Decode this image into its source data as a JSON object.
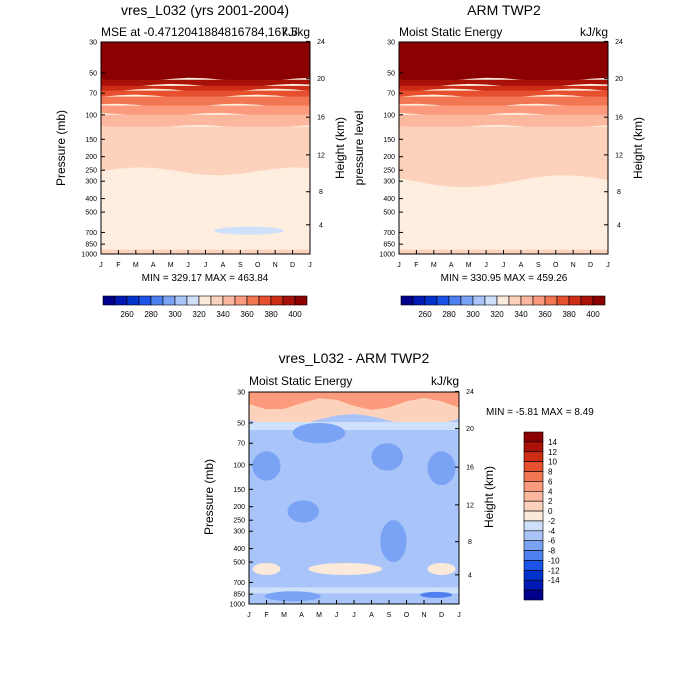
{
  "panels": [
    {
      "title": "vres_L032 (yrs 2001-2004)",
      "left_label": "MSE at -0.4712041884816784,167.5",
      "right_label": "kJ/kg",
      "ylabel_left": "Pressure (mb)",
      "ylabel_right": "Height (km)",
      "stats": "MIN = 329.17 MAX = 463.84"
    },
    {
      "title": "ARM TWP2",
      "left_label": "Moist Static Energy",
      "right_label": "kJ/kg",
      "ylabel_left": "pressure level",
      "ylabel_right": "Height (km)",
      "stats": "MIN = 330.95 MAX = 459.26"
    },
    {
      "title": "vres_L032 - ARM TWP2",
      "left_label": "Moist Static Energy",
      "right_label": "kJ/kg",
      "ylabel_left": "Pressure (mb)",
      "ylabel_right": "Height (km)",
      "stats": "MIN =  -5.81 MAX =   8.49"
    }
  ],
  "colorbar_abs": {
    "colors": [
      "#00008b",
      "#0019b3",
      "#0033cc",
      "#1a53e6",
      "#4d7ff0",
      "#7aa3f5",
      "#a8c4f8",
      "#cfe0fb",
      "#fbe9da",
      "#fcd2bc",
      "#fcb89e",
      "#fb9a7c",
      "#f37652",
      "#e6502e",
      "#cc2d14",
      "#a81208",
      "#8b0000"
    ],
    "tick_labels": [
      "260",
      "280",
      "300",
      "320",
      "340",
      "360",
      "380",
      "400"
    ]
  },
  "colorbar_diff": {
    "colors": [
      "#00008b",
      "#0019b3",
      "#0033cc",
      "#1a53e6",
      "#4d7ff0",
      "#7aa3f5",
      "#a8c4f8",
      "#cfe0fb",
      "#fbe9da",
      "#fcd2bc",
      "#fcb89e",
      "#fb9a7c",
      "#f37652",
      "#e6502e",
      "#cc2d14",
      "#a81208",
      "#8b0000"
    ],
    "tick_labels": [
      "-14",
      "-12",
      "-10",
      "-8",
      "-6",
      "-4",
      "-2",
      "0",
      "2",
      "4",
      "6",
      "8",
      "10",
      "12",
      "14"
    ]
  },
  "chart_data": [
    {
      "type": "heatmap",
      "title": "vres_L032 (yrs 2001-2004)",
      "x_categories": [
        "J",
        "F",
        "M",
        "A",
        "M",
        "J",
        "J",
        "A",
        "S",
        "O",
        "N",
        "D",
        "J"
      ],
      "pressure_ticks": [
        "30",
        "50",
        "70",
        "100",
        "150",
        "200",
        "250",
        "300",
        "400",
        "500",
        "700",
        "850",
        "1000"
      ],
      "height_ticks": [
        "24",
        "20",
        "16",
        "12",
        "8",
        "4"
      ],
      "ylabel": "Pressure (mb)",
      "y2label": "Height (km)",
      "units": "kJ/kg",
      "min": 329.17,
      "max": 463.84
    },
    {
      "type": "heatmap",
      "title": "ARM TWP2",
      "x_categories": [
        "J",
        "F",
        "M",
        "A",
        "M",
        "J",
        "J",
        "A",
        "S",
        "O",
        "N",
        "D",
        "J"
      ],
      "pressure_ticks": [
        "30",
        "50",
        "70",
        "100",
        "150",
        "200",
        "250",
        "300",
        "400",
        "500",
        "700",
        "850",
        "1000"
      ],
      "height_ticks": [
        "24",
        "20",
        "16",
        "12",
        "8",
        "4"
      ],
      "ylabel": "pressure level",
      "y2label": "Height (km)",
      "units": "kJ/kg",
      "min": 330.95,
      "max": 459.26
    },
    {
      "type": "heatmap",
      "title": "vres_L032 - ARM TWP2",
      "x_categories": [
        "J",
        "F",
        "M",
        "A",
        "M",
        "J",
        "J",
        "A",
        "S",
        "O",
        "N",
        "D",
        "J"
      ],
      "pressure_ticks": [
        "30",
        "50",
        "70",
        "100",
        "150",
        "200",
        "250",
        "300",
        "400",
        "500",
        "700",
        "850",
        "1000"
      ],
      "height_ticks": [
        "24",
        "20",
        "16",
        "12",
        "8",
        "4"
      ],
      "ylabel": "Pressure (mb)",
      "y2label": "Height (km)",
      "units": "kJ/kg",
      "min": -5.81,
      "max": 8.49
    }
  ]
}
